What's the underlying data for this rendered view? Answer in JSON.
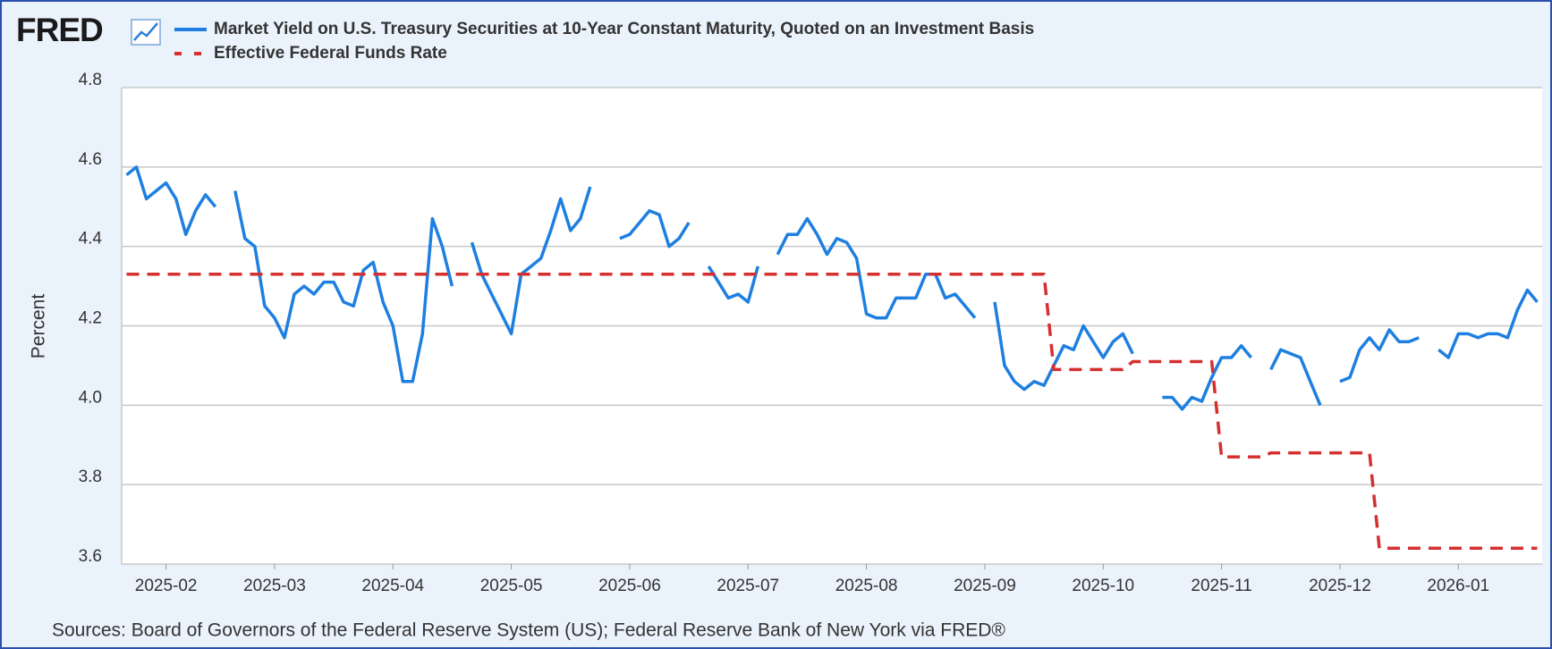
{
  "chart_data": {
    "type": "line",
    "logo": "FRED",
    "ylabel": "Percent",
    "source": "Sources: Board of Governors of the Federal Reserve System (US); Federal Reserve Bank of New York via FRED®",
    "categories": [
      null,
      null,
      null,
      null,
      "2025-02",
      null,
      null,
      null,
      null,
      null,
      null,
      null,
      null,
      null,
      null,
      "2025-03",
      null,
      null,
      null,
      null,
      null,
      null,
      null,
      null,
      null,
      null,
      null,
      "2025-04",
      null,
      null,
      null,
      null,
      null,
      null,
      null,
      null,
      null,
      null,
      null,
      "2025-05",
      null,
      null,
      null,
      null,
      null,
      null,
      null,
      null,
      null,
      null,
      null,
      "2025-06",
      null,
      null,
      null,
      null,
      null,
      null,
      null,
      null,
      null,
      null,
      null,
      "2025-07",
      null,
      null,
      null,
      null,
      null,
      null,
      null,
      null,
      null,
      null,
      null,
      "2025-08",
      null,
      null,
      null,
      null,
      null,
      null,
      null,
      null,
      null,
      null,
      null,
      "2025-09",
      null,
      null,
      null,
      null,
      null,
      null,
      null,
      null,
      null,
      null,
      null,
      "2025-10",
      null,
      null,
      null,
      null,
      null,
      null,
      null,
      null,
      null,
      null,
      null,
      "2025-11",
      null,
      null,
      null,
      null,
      null,
      null,
      null,
      null,
      null,
      null,
      null,
      "2025-12",
      null,
      null,
      null,
      null,
      null,
      null,
      null,
      null,
      null,
      null,
      null,
      "2026-01",
      null,
      null,
      null,
      null,
      null,
      null,
      null,
      null
    ],
    "series": [
      {
        "name": "Market Yield on U.S. Treasury Securities at 10-Year Constant Maturity, Quoted on an Investment Basis",
        "color": "#1e7fe0",
        "dash": "solid",
        "values": [
          4.58,
          4.6,
          4.52,
          4.54,
          4.56,
          4.52,
          4.43,
          4.49,
          4.53,
          4.5,
          null,
          4.54,
          4.42,
          4.4,
          4.25,
          4.22,
          4.17,
          4.28,
          4.3,
          4.28,
          4.31,
          4.31,
          4.26,
          4.25,
          4.34,
          4.36,
          4.26,
          4.2,
          4.06,
          4.06,
          4.18,
          4.47,
          4.4,
          4.3,
          null,
          4.41,
          4.33,
          4.28,
          4.23,
          4.18,
          4.33,
          4.35,
          4.37,
          4.44,
          4.52,
          4.44,
          4.47,
          4.55,
          null,
          null,
          4.42,
          4.43,
          4.46,
          4.49,
          4.48,
          4.4,
          4.42,
          4.46,
          null,
          4.35,
          4.31,
          4.27,
          4.28,
          4.26,
          4.35,
          null,
          4.38,
          4.43,
          4.43,
          4.47,
          4.43,
          4.38,
          4.42,
          4.41,
          4.37,
          4.23,
          4.22,
          4.22,
          4.27,
          4.27,
          4.27,
          4.33,
          4.33,
          4.27,
          4.28,
          4.25,
          4.22,
          null,
          4.26,
          4.1,
          4.06,
          4.04,
          4.06,
          4.05,
          4.1,
          4.15,
          4.14,
          4.2,
          4.16,
          4.12,
          4.16,
          4.18,
          4.13,
          null,
          null,
          4.02,
          4.02,
          3.99,
          4.02,
          4.01,
          4.07,
          4.12,
          4.12,
          4.15,
          4.12,
          null,
          4.09,
          4.14,
          4.13,
          4.12,
          4.06,
          4.0,
          null,
          4.06,
          4.07,
          4.14,
          4.17,
          4.14,
          4.19,
          4.16,
          4.16,
          4.17,
          null,
          4.14,
          4.12,
          4.18,
          4.18,
          4.17,
          4.18,
          4.18,
          4.17,
          4.24,
          4.29,
          4.26
        ]
      },
      {
        "name": "Effective Federal Funds Rate",
        "color": "#d62f2f",
        "dash": "dashed",
        "values": [
          4.33,
          4.33,
          4.33,
          4.33,
          4.33,
          4.33,
          4.33,
          4.33,
          4.33,
          4.33,
          4.33,
          4.33,
          4.33,
          4.33,
          4.33,
          4.33,
          4.33,
          4.33,
          4.33,
          4.33,
          4.33,
          4.33,
          4.33,
          4.33,
          4.33,
          4.33,
          4.33,
          4.33,
          4.33,
          4.33,
          4.33,
          4.33,
          4.33,
          4.33,
          4.33,
          4.33,
          4.33,
          4.33,
          4.33,
          4.33,
          4.33,
          4.33,
          4.33,
          4.33,
          4.33,
          4.33,
          4.33,
          4.33,
          4.33,
          4.33,
          4.33,
          4.33,
          4.33,
          4.33,
          4.33,
          4.33,
          4.33,
          4.33,
          4.33,
          4.33,
          4.33,
          4.33,
          4.33,
          4.33,
          4.33,
          4.33,
          4.33,
          4.33,
          4.33,
          4.33,
          4.33,
          4.33,
          4.33,
          4.33,
          4.33,
          4.33,
          4.33,
          4.33,
          4.33,
          4.33,
          4.33,
          4.33,
          4.33,
          4.33,
          4.33,
          4.33,
          4.33,
          4.33,
          4.33,
          4.33,
          4.33,
          4.33,
          4.33,
          4.33,
          4.09,
          4.09,
          4.09,
          4.09,
          4.09,
          4.09,
          4.09,
          4.09,
          4.11,
          4.11,
          4.11,
          4.11,
          4.11,
          4.11,
          4.11,
          4.11,
          4.11,
          3.87,
          3.87,
          3.87,
          3.87,
          3.87,
          3.88,
          3.88,
          3.88,
          3.88,
          3.88,
          3.88,
          3.88,
          3.88,
          3.88,
          3.88,
          3.88,
          3.64,
          3.64,
          3.64,
          3.64,
          3.64,
          3.64,
          3.64,
          3.64,
          3.64,
          3.64,
          3.64,
          3.64,
          3.64,
          3.64,
          3.64,
          3.64,
          3.64
        ]
      }
    ],
    "ylim": [
      3.6,
      4.8
    ],
    "yticks": [
      3.6,
      3.8,
      {
        "value": 4,
        "label": "4.0"
      },
      4.2,
      4.4,
      4.6,
      4.8
    ],
    "grid": true
  }
}
